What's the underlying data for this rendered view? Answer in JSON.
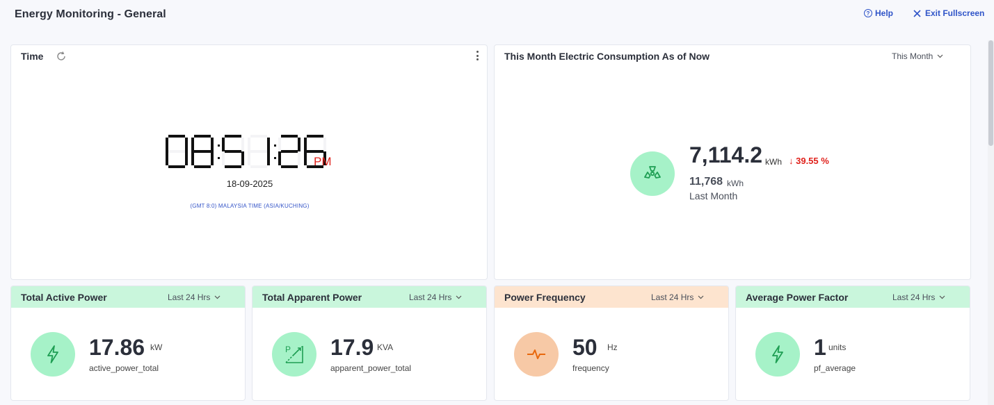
{
  "header": {
    "title": "Energy Monitoring - General",
    "help_label": "Help",
    "help_icon": "?",
    "exit_label": "Exit Fullscreen"
  },
  "time_card": {
    "title": "Time",
    "time": "08:51:26",
    "ampm": "PM",
    "date": "18-09-2025",
    "timezone": "(GMT 8:0) MALAYSIA TIME (ASIA/KUCHING)"
  },
  "consumption": {
    "title": "This Month Electric Consumption As of Now",
    "period": "This Month",
    "value": "7,114.2",
    "unit": "kWh",
    "change": "↓ 39.55 %",
    "last_value": "11,768",
    "last_unit": "kWh",
    "last_label": "Last Month"
  },
  "metrics": [
    {
      "title": "Total Active Power",
      "period": "Last 24 Hrs",
      "value": "17.86",
      "unit": "kW",
      "sub": "active_power_total",
      "icon": "lightning-icon"
    },
    {
      "title": "Total Apparent Power",
      "period": "Last 24 Hrs",
      "value": "17.9",
      "unit": "KVA",
      "sub": "apparent_power_total",
      "icon": "apparent-power-icon"
    },
    {
      "title": "Power Frequency",
      "period": "Last 24 Hrs",
      "value": "50",
      "unit": "Hz",
      "sub": "frequency",
      "icon": "pulse-icon"
    },
    {
      "title": "Average Power Factor",
      "period": "Last 24 Hrs",
      "value": "1",
      "unit": "units",
      "sub": "pf_average",
      "icon": "lightning-icon"
    }
  ],
  "colors": {
    "accent": "#2f54c8",
    "green_bg": "#a6f2c8",
    "green_icon": "#1e9e53",
    "orange_bg": "#f7c9a6",
    "orange_icon": "#e8680d",
    "alert": "#e0211b"
  }
}
